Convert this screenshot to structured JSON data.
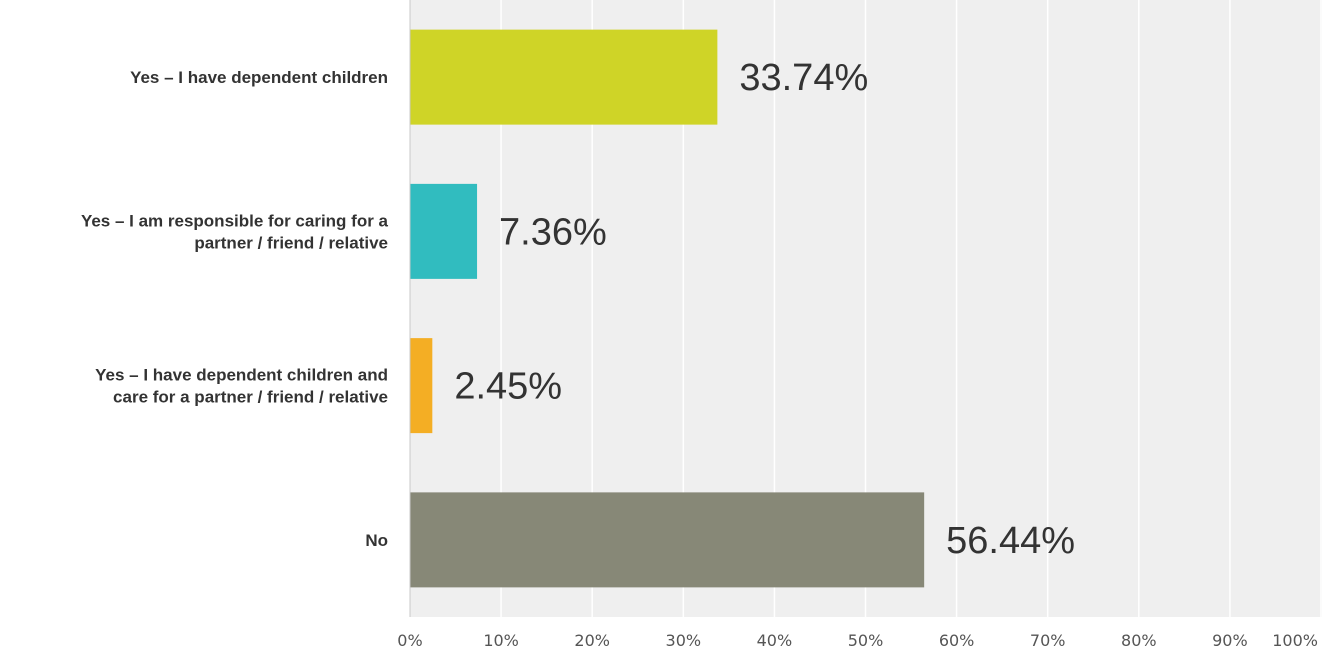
{
  "chart_data": {
    "type": "bar",
    "orientation": "horizontal",
    "categories": [
      [
        "Yes – I have dependent children"
      ],
      [
        "Yes – I am responsible for caring for a",
        "partner / friend / relative"
      ],
      [
        "Yes – I have dependent children and",
        "care for a partner / friend / relative"
      ],
      [
        "No"
      ]
    ],
    "values": [
      33.74,
      7.36,
      2.45,
      56.44
    ],
    "data_labels": [
      "33.74%",
      "7.36%",
      "2.45%",
      "56.44%"
    ],
    "colors": [
      "#cfd427",
      "#31bcbf",
      "#f4ae24",
      "#878877"
    ],
    "xlim": [
      0,
      100
    ],
    "x_ticks": [
      "0%",
      "10%",
      "20%",
      "30%",
      "40%",
      "50%",
      "60%",
      "70%",
      "80%",
      "90%",
      "100%"
    ],
    "title": "",
    "xlabel": "",
    "ylabel": "",
    "grid": true,
    "background": "#efefef",
    "grid_color": "#ffffff"
  }
}
